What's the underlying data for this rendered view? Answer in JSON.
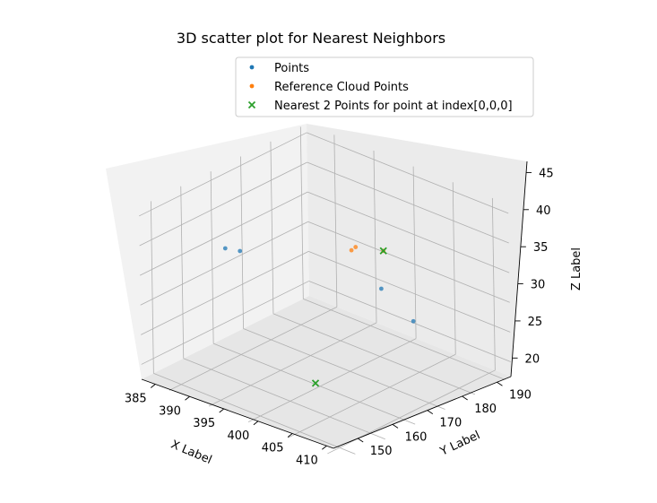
{
  "chart_data": {
    "type": "scatter",
    "projection": "3d",
    "title": "3D scatter plot for Nearest Neighbors",
    "xlabel": "X Label",
    "ylabel": "Y Label",
    "zlabel": "Z Label",
    "xlim": [
      383,
      411
    ],
    "ylim": [
      143,
      194
    ],
    "zlim": [
      17.5,
      46.5
    ],
    "xticks": [
      385,
      390,
      395,
      400,
      405,
      410
    ],
    "yticks": [
      150,
      160,
      170,
      180,
      190
    ],
    "zticks": [
      20,
      25,
      30,
      35,
      40,
      45
    ],
    "grid": true,
    "legend": {
      "placement": "upper-center"
    },
    "series": [
      {
        "name": "Points",
        "marker": "dot",
        "color": "#1f77b4",
        "points": [
          {
            "x": 384.0,
            "y": 167.0,
            "z": 45.0
          },
          {
            "x": 384.5,
            "y": 162.5,
            "z": 44.0
          },
          {
            "x": 393.0,
            "y": 189.0,
            "z": 40.0
          },
          {
            "x": 408.0,
            "y": 174.0,
            "z": 23.0
          }
        ]
      },
      {
        "name": "Reference Cloud Points",
        "marker": "dot",
        "color": "#ff7f0e",
        "points": [
          {
            "x": 387.5,
            "y": 190.0,
            "z": 49.5
          },
          {
            "x": 389.5,
            "y": 188.0,
            "z": 48.5
          },
          {
            "x": 398.0,
            "y": 182.0,
            "z": 42.0
          }
        ]
      },
      {
        "name": "Nearest 2 Points for point at index[0,0,0]",
        "marker": "x",
        "color": "#2ca02c",
        "points": [
          {
            "x": 398.0,
            "y": 182.0,
            "z": 42.0
          },
          {
            "x": 404.0,
            "y": 155.0,
            "z": 9.5
          }
        ]
      }
    ]
  }
}
